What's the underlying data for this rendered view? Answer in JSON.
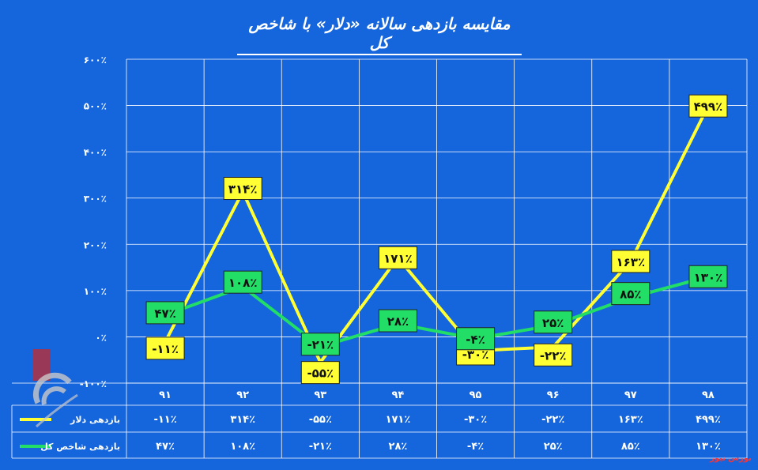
{
  "chart_data": {
    "type": "line",
    "title": "مقایسه بازدهی سالانه «دلار» با شاخص کل",
    "categories": [
      "۹۱",
      "۹۲",
      "۹۳",
      "۹۴",
      "۹۵",
      "۹۶",
      "۹۷",
      "۹۸"
    ],
    "ylim": [
      -100,
      600
    ],
    "yticks": [
      -100,
      0,
      100,
      200,
      300,
      400,
      500,
      600
    ],
    "ytick_labels": [
      "-۱۰۰٪",
      "۰٪",
      "۱۰۰٪",
      "۲۰۰٪",
      "۳۰۰٪",
      "۴۰۰٪",
      "۵۰۰٪",
      "۶۰۰٪"
    ],
    "grid": true,
    "series": [
      {
        "name": "بازدهی دلار",
        "color": "#ffff33",
        "values": [
          -11,
          314,
          -55,
          171,
          -30,
          -22,
          163,
          499
        ],
        "labels": [
          "-۱۱٪",
          "۳۱۴٪",
          "-۵۵٪",
          "۱۷۱٪",
          "-۳۰٪",
          "-۲۲٪",
          "۱۶۳٪",
          "۴۹۹٪"
        ]
      },
      {
        "name": "بازدهی شاخص کل",
        "color": "#22dd66",
        "values": [
          47,
          108,
          -21,
          28,
          -4,
          25,
          85,
          130
        ],
        "labels": [
          "۴۷٪",
          "۱۰۸٪",
          "-۲۱٪",
          "۲۸٪",
          "-۴٪",
          "۲۵٪",
          "۸۵٪",
          "۱۳۰٪"
        ]
      }
    ]
  },
  "watermark": "بورس نیوز",
  "colors": {
    "background": "#1565dd",
    "grid": "#ffffff",
    "dollar": "#ffff33",
    "index": "#22dd66"
  }
}
